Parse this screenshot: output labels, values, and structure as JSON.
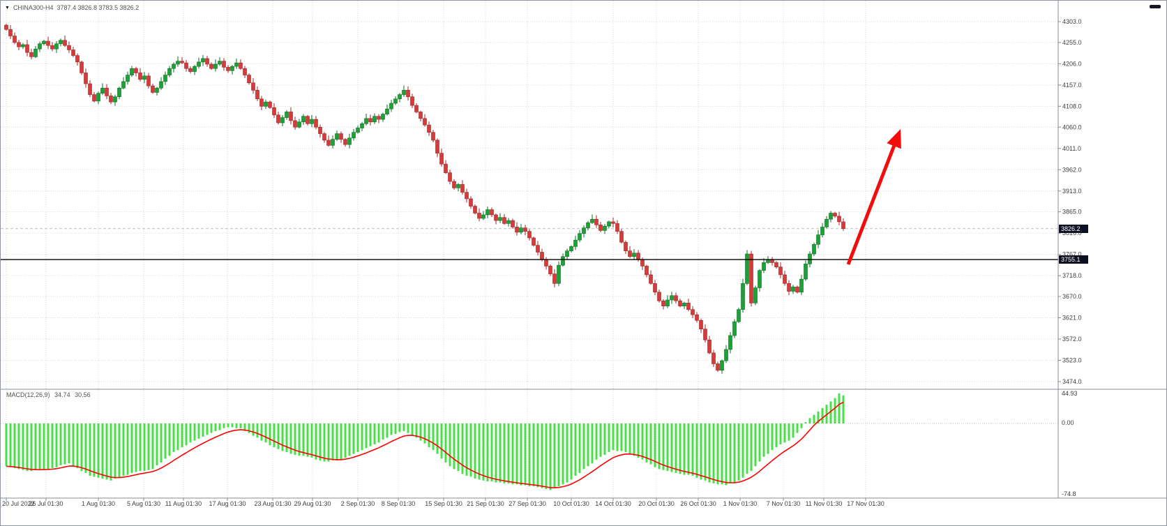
{
  "window": {
    "symbol": "CHINA300-H4",
    "ohlc_text": "3787.4 3826.8 3783.5 3826.2"
  },
  "price_axis": {
    "current_price": "3826.2",
    "hline_price": "3755.1"
  },
  "macd_panel": {
    "legend_name": "MACD(12,26,9)",
    "value_macd": "34.74",
    "value_signal": "30.56",
    "axis": {
      "max": "44.93",
      "zero": "0.00",
      "min": "-74.8"
    }
  },
  "colors": {
    "bull": "#1ba135",
    "bull_border": "#0d6e21",
    "bear": "#d43c3c",
    "bear_border": "#9e2424",
    "macd_bar": "#46e046",
    "signal_line": "#fe0000",
    "grid": "#d6d6d6",
    "zero_line": "#bdbdbd",
    "axis_line": "#868b93",
    "support_line": "#000000",
    "current_dash": "#bcbcbc",
    "badge_bg": "#0c1020",
    "arrow": "#f20c0c"
  },
  "chart_data": {
    "type": "candlestick",
    "title": "CHINA300-H4",
    "timeframe": "H4",
    "ylim": [
      3474.0,
      4303.0
    ],
    "price_ticks": [
      "4303.0",
      "4255.0",
      "4206.0",
      "4157.0",
      "4108.0",
      "4060.0",
      "4011.0",
      "3962.0",
      "3913.0",
      "3865.0",
      "3816.0",
      "3767.0",
      "3718.0",
      "3670.0",
      "3621.0",
      "3572.0",
      "3523.0",
      "3474.0"
    ],
    "time_labels": [
      {
        "text": "20 Jul 2022",
        "x": 8
      },
      {
        "text": "26 Jul 01:30",
        "x": 65
      },
      {
        "text": "1 Aug 01:30",
        "x": 140
      },
      {
        "text": "5 Aug 01:30",
        "x": 205
      },
      {
        "text": "11 Aug 01:30",
        "x": 262
      },
      {
        "text": "17 Aug 01:30",
        "x": 325
      },
      {
        "text": "23 Aug 01:30",
        "x": 390
      },
      {
        "text": "29 Aug 01:30",
        "x": 447
      },
      {
        "text": "2 Sep 01:30",
        "x": 512
      },
      {
        "text": "8 Sep 01:30",
        "x": 570
      },
      {
        "text": "15 Sep 01:30",
        "x": 635
      },
      {
        "text": "21 Sep 01:30",
        "x": 695
      },
      {
        "text": "27 Sep 01:30",
        "x": 755
      },
      {
        "text": "10 Oct 01:30",
        "x": 818
      },
      {
        "text": "14 Oct 01:30",
        "x": 878
      },
      {
        "text": "20 Oct 01:30",
        "x": 940
      },
      {
        "text": "26 Oct 01:30",
        "x": 1000
      },
      {
        "text": "1 Nov 01:30",
        "x": 1060
      },
      {
        "text": "7 Nov 01:30",
        "x": 1122
      },
      {
        "text": "11 Nov 01:30",
        "x": 1180
      },
      {
        "text": "17 Nov 01:30",
        "x": 1240
      }
    ],
    "first_open": 4295,
    "closes": [
      4285,
      4270,
      4255,
      4245,
      4250,
      4232,
      4222,
      4240,
      4252,
      4258,
      4248,
      4240,
      4252,
      4260,
      4248,
      4238,
      4225,
      4210,
      4185,
      4160,
      4135,
      4120,
      4138,
      4150,
      4132,
      4118,
      4130,
      4150,
      4165,
      4180,
      4195,
      4185,
      4170,
      4178,
      4155,
      4140,
      4150,
      4165,
      4180,
      4195,
      4205,
      4212,
      4208,
      4195,
      4188,
      4200,
      4210,
      4218,
      4205,
      4195,
      4205,
      4212,
      4198,
      4190,
      4200,
      4208,
      4195,
      4180,
      4162,
      4145,
      4125,
      4108,
      4118,
      4105,
      4088,
      4070,
      4082,
      4095,
      4075,
      4060,
      4072,
      4085,
      4068,
      4078,
      4060,
      4045,
      4030,
      4018,
      4032,
      4045,
      4032,
      4020,
      4035,
      4048,
      4058,
      4068,
      4080,
      4072,
      4085,
      4078,
      4090,
      4102,
      4115,
      4125,
      4135,
      4145,
      4130,
      4110,
      4095,
      4080,
      4065,
      4048,
      4030,
      4000,
      3975,
      3955,
      3935,
      3920,
      3928,
      3910,
      3895,
      3878,
      3862,
      3850,
      3858,
      3870,
      3858,
      3845,
      3852,
      3838,
      3845,
      3830,
      3818,
      3828,
      3820,
      3805,
      3788,
      3772,
      3755,
      3740,
      3722,
      3700,
      3742,
      3762,
      3775,
      3785,
      3800,
      3815,
      3828,
      3840,
      3848,
      3835,
      3822,
      3832,
      3842,
      3838,
      3820,
      3795,
      3775,
      3762,
      3770,
      3755,
      3740,
      3720,
      3700,
      3680,
      3660,
      3648,
      3662,
      3672,
      3660,
      3648,
      3655,
      3640,
      3628,
      3615,
      3595,
      3570,
      3540,
      3515,
      3500,
      3522,
      3548,
      3580,
      3612,
      3640,
      3700,
      3768,
      3655,
      3690,
      3730,
      3748,
      3755,
      3748,
      3738,
      3720,
      3700,
      3682,
      3692,
      3680,
      3710,
      3745,
      3768,
      3790,
      3812,
      3830,
      3848,
      3862,
      3855,
      3842,
      3826.2
    ],
    "last_candle_ohlc": {
      "open": 3787.4,
      "high": 3826.8,
      "low": 3783.5,
      "close": 3826.2
    },
    "current_price": 3826.2,
    "support_line_price": 3755.1,
    "macd": {
      "params": [
        12,
        26,
        9
      ],
      "ylim": [
        -74.8,
        44.93
      ],
      "last_macd": 34.74,
      "last_signal": 30.56,
      "histogram": [
        -45,
        -46,
        -47,
        -48,
        -49,
        -50,
        -50,
        -49,
        -49,
        -48,
        -48,
        -47,
        -46,
        -44,
        -43,
        -42,
        -45,
        -47,
        -50,
        -52,
        -55,
        -56,
        -57,
        -58,
        -59,
        -60,
        -58,
        -57,
        -55,
        -54,
        -52,
        -51,
        -50,
        -50,
        -49,
        -48,
        -44,
        -41,
        -37,
        -34,
        -30,
        -28,
        -25,
        -23,
        -20,
        -18,
        -16,
        -14,
        -12,
        -10,
        -8,
        -7,
        -5,
        -4,
        -4,
        -5,
        -5,
        -8,
        -10,
        -13,
        -15,
        -18,
        -20,
        -23,
        -25,
        -27,
        -29,
        -30,
        -32,
        -33,
        -34,
        -34,
        -35,
        -36,
        -38,
        -39,
        -40,
        -40,
        -39,
        -39,
        -38,
        -36,
        -34,
        -32,
        -30,
        -28,
        -26,
        -24,
        -22,
        -20,
        -17,
        -15,
        -12,
        -11,
        -9,
        -8,
        -10,
        -13,
        -15,
        -18,
        -21,
        -25,
        -28,
        -32,
        -37,
        -41,
        -45,
        -48,
        -50,
        -53,
        -55,
        -56,
        -58,
        -59,
        -60,
        -61,
        -61,
        -62,
        -62,
        -63,
        -63,
        -64,
        -64,
        -65,
        -65,
        -66,
        -66,
        -67,
        -68,
        -69,
        -70,
        -68,
        -66,
        -64,
        -62,
        -59,
        -55,
        -52,
        -48,
        -45,
        -42,
        -38,
        -35,
        -33,
        -30,
        -28,
        -29,
        -29,
        -30,
        -32,
        -34,
        -36,
        -38,
        -41,
        -43,
        -46,
        -48,
        -49,
        -50,
        -51,
        -52,
        -53,
        -54,
        -54,
        -55,
        -57,
        -59,
        -60,
        -62,
        -63,
        -64,
        -64,
        -65,
        -63,
        -62,
        -60,
        -57,
        -53,
        -50,
        -45,
        -40,
        -35,
        -32,
        -28,
        -25,
        -22,
        -20,
        -18,
        -15,
        -10,
        -5,
        2,
        8,
        13,
        18,
        23,
        28,
        33,
        38,
        45,
        42
      ]
    }
  },
  "annotations": {
    "trend_arrow": {
      "from": [
        1215,
        378
      ],
      "to": [
        1290,
        184
      ]
    }
  }
}
